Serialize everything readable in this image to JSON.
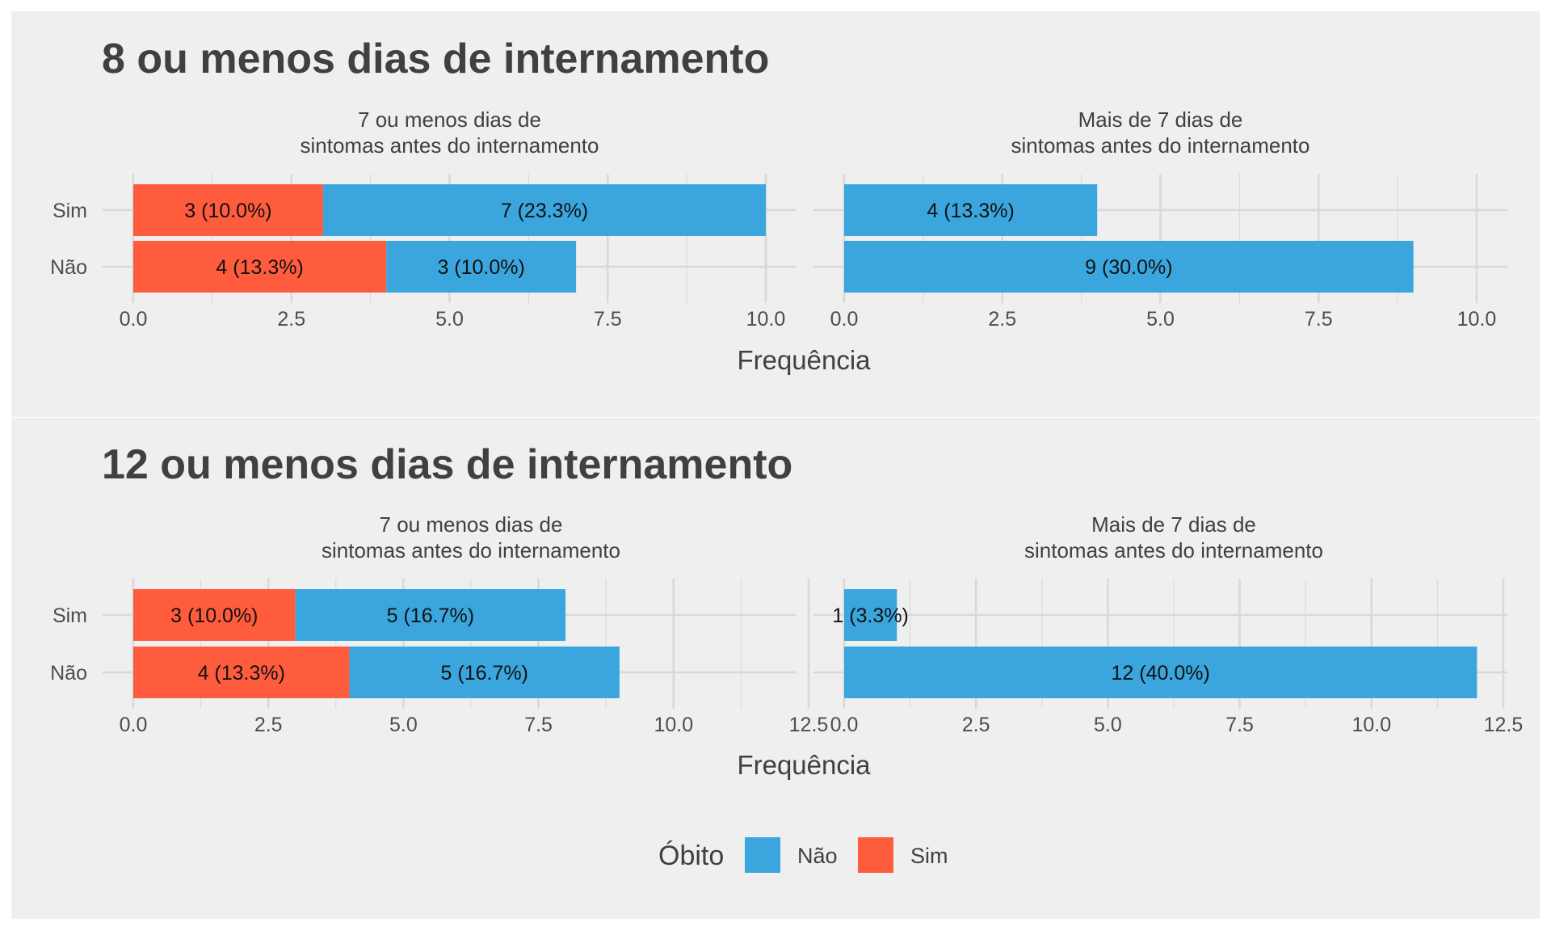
{
  "legend": {
    "title": "Óbito",
    "items": [
      {
        "label": "Não",
        "color": "#3AA6DD"
      },
      {
        "label": "Sim",
        "color": "#FF5C3E"
      }
    ]
  },
  "colors": {
    "panel_background": "#EFEFEF",
    "grid": "#D8D8D8",
    "bar_nao": "#3AA6DD",
    "bar_sim": "#FF5C3E"
  },
  "chart_data": [
    {
      "type": "bar",
      "orientation": "horizontal",
      "stacked": true,
      "title": "8 ou menos dias de internamento",
      "xlabel": "Frequência",
      "categories": [
        "Sim",
        "Não"
      ],
      "xlim": [
        0,
        10.0
      ],
      "xticks": [
        "0.0",
        "2.5",
        "5.0",
        "7.5",
        "10.0"
      ],
      "grid": true,
      "facets": [
        {
          "label_lines": [
            "7 ou menos dias de",
            "sintomas antes do internamento"
          ],
          "series": [
            {
              "name": "Sim",
              "values": [
                3,
                4
              ],
              "labels": [
                "3 (10.0%)",
                "4 (13.3%)"
              ]
            },
            {
              "name": "Não",
              "values": [
                7,
                3
              ],
              "labels": [
                "7 (23.3%)",
                "3 (10.0%)"
              ]
            }
          ]
        },
        {
          "label_lines": [
            "Mais de 7 dias de",
            "sintomas antes do internamento"
          ],
          "series": [
            {
              "name": "Sim",
              "values": [
                0,
                0
              ],
              "labels": [
                "",
                ""
              ]
            },
            {
              "name": "Não",
              "values": [
                4,
                9
              ],
              "labels": [
                "4 (13.3%)",
                "9 (30.0%)"
              ]
            }
          ]
        }
      ]
    },
    {
      "type": "bar",
      "orientation": "horizontal",
      "stacked": true,
      "title": "12 ou menos dias de internamento",
      "xlabel": "Frequência",
      "categories": [
        "Sim",
        "Não"
      ],
      "xlim": [
        0,
        12.5
      ],
      "xticks": [
        "0.0",
        "2.5",
        "5.0",
        "7.5",
        "10.0",
        "12.5"
      ],
      "grid": true,
      "facets": [
        {
          "label_lines": [
            "7 ou menos dias de",
            "sintomas antes do internamento"
          ],
          "series": [
            {
              "name": "Sim",
              "values": [
                3,
                4
              ],
              "labels": [
                "3 (10.0%)",
                "4 (13.3%)"
              ]
            },
            {
              "name": "Não",
              "values": [
                5,
                5
              ],
              "labels": [
                "5 (16.7%)",
                "5 (16.7%)"
              ]
            }
          ]
        },
        {
          "label_lines": [
            "Mais de 7 dias de",
            "sintomas antes do internamento"
          ],
          "series": [
            {
              "name": "Sim",
              "values": [
                0,
                0
              ],
              "labels": [
                "",
                ""
              ]
            },
            {
              "name": "Não",
              "values": [
                1,
                12
              ],
              "labels": [
                "1 (3.3%)",
                "12 (40.0%)"
              ]
            }
          ]
        }
      ]
    }
  ]
}
